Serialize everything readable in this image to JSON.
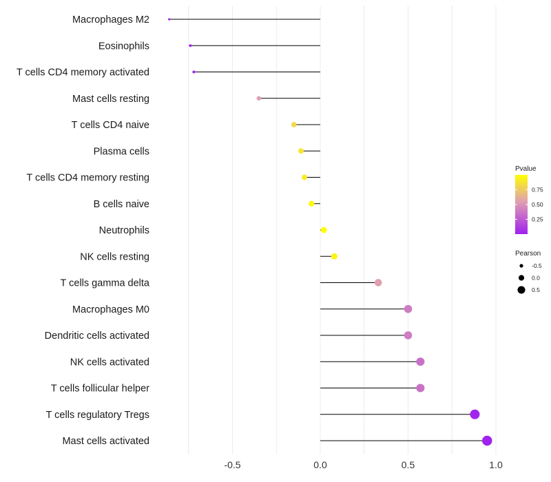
{
  "chart_data": {
    "type": "lollipop",
    "categories": [
      "Macrophages M2",
      "Eosinophils",
      "T cells CD4 memory activated",
      "Mast cells resting",
      "T cells CD4 naive",
      "Plasma cells",
      "T cells CD4 memory resting",
      "B cells naive",
      "Neutrophils",
      "NK cells resting",
      "T cells gamma delta",
      "Macrophages M0",
      "Dendritic cells activated",
      "NK cells activated",
      "T cells follicular helper",
      "T cells regulatory  Tregs",
      "Mast cells activated"
    ],
    "pearson": [
      -0.86,
      -0.74,
      -0.72,
      -0.35,
      -0.15,
      -0.11,
      -0.09,
      -0.05,
      0.02,
      0.08,
      0.33,
      0.5,
      0.5,
      0.57,
      0.57,
      0.88,
      0.95
    ],
    "pvalue": [
      0.0,
      0.02,
      0.04,
      0.55,
      0.82,
      0.88,
      0.9,
      0.97,
      0.99,
      0.95,
      0.55,
      0.4,
      0.4,
      0.35,
      0.35,
      0.02,
      0.01
    ],
    "xlim": [
      -1.0,
      1.0
    ],
    "x_ticks": [
      -0.5,
      0.0,
      0.5,
      1.0
    ],
    "x_tick_labels": [
      "-0.5",
      "0.0",
      "0.5",
      "1.0"
    ],
    "xlabel": "",
    "ylabel": "",
    "legend": {
      "color": {
        "title": "Pvalue",
        "range": [
          0.0,
          1.0
        ],
        "ticks": [
          0.75,
          0.5,
          0.25
        ],
        "tick_labels": [
          "0.75",
          "0.50",
          "0.25"
        ],
        "low_color": "#a020f0",
        "mid_color": "#e0a0b0",
        "high_color": "#ffff00"
      },
      "size": {
        "title": "Pearson",
        "values": [
          -0.5,
          0.0,
          0.5
        ],
        "labels": [
          "-0.5",
          "0.0",
          "0.5"
        ]
      },
      "placement": "right"
    },
    "grid": true
  }
}
